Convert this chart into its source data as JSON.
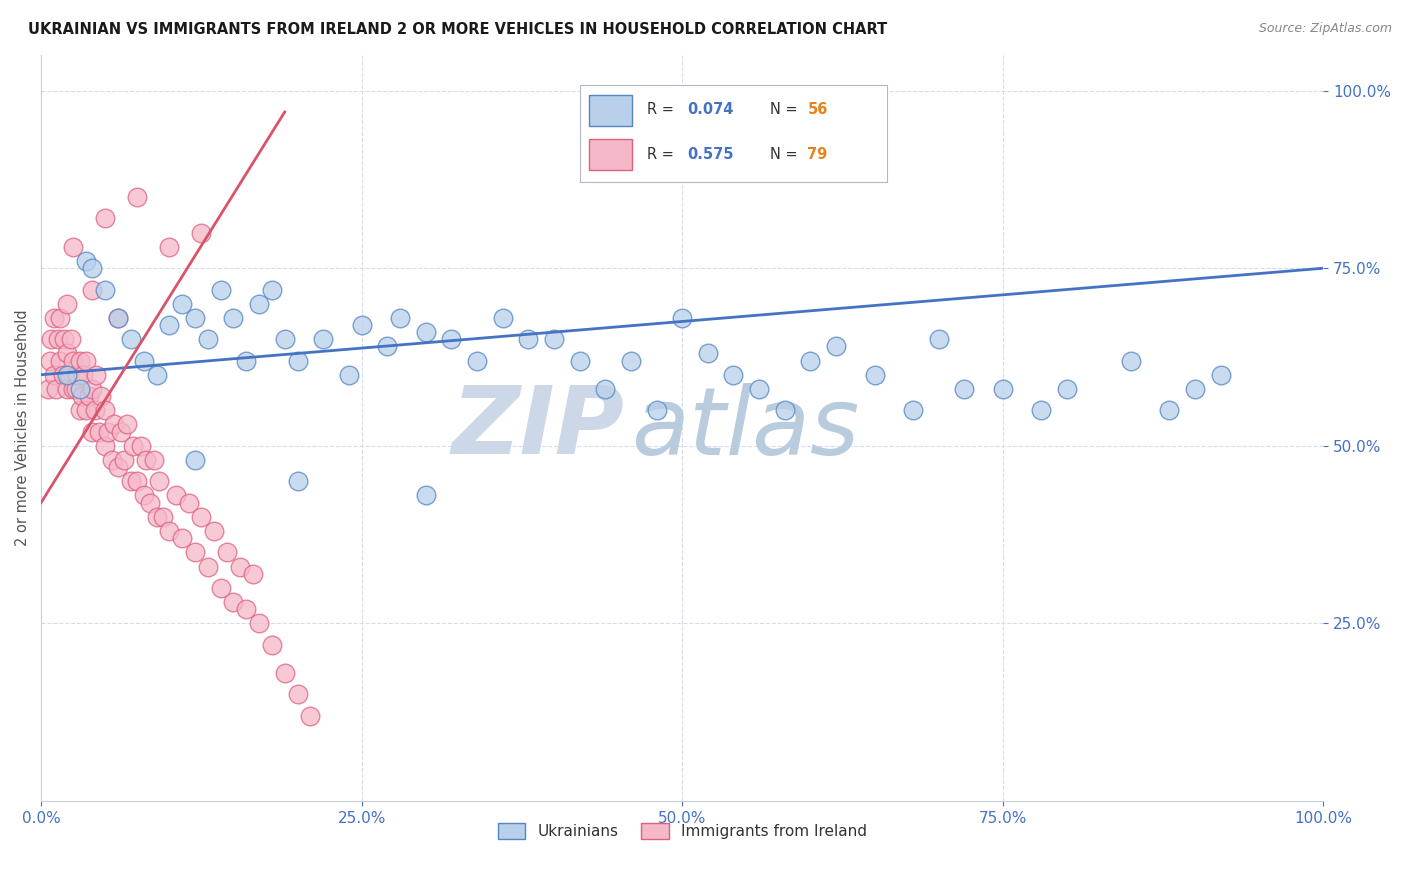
{
  "title": "UKRAINIAN VS IMMIGRANTS FROM IRELAND 2 OR MORE VEHICLES IN HOUSEHOLD CORRELATION CHART",
  "source": "Source: ZipAtlas.com",
  "ylabel": "2 or more Vehicles in Household",
  "blue_R_val": "0.074",
  "blue_N_val": "56",
  "pink_R_val": "0.575",
  "pink_N_val": "79",
  "blue_fill": "#b8d0ea",
  "pink_fill": "#f5b8c8",
  "blue_edge": "#5585c5",
  "pink_edge": "#e06080",
  "blue_trend_color": "#4472c4",
  "pink_trend_color": "#d9536a",
  "legend_R_color": "#4472c4",
  "legend_N_color": "#e8821a",
  "watermark_zip_color": "#ccd8e8",
  "watermark_atlas_color": "#b8ccde",
  "background_color": "#ffffff",
  "grid_color": "#d5dded",
  "tick_label_color": "#4472c4",
  "title_color": "#1a1a1a",
  "ylabel_color": "#555555",
  "blue_x": [
    0.02,
    0.03,
    0.035,
    0.04,
    0.05,
    0.06,
    0.07,
    0.08,
    0.09,
    0.1,
    0.11,
    0.12,
    0.13,
    0.14,
    0.15,
    0.16,
    0.17,
    0.18,
    0.19,
    0.2,
    0.22,
    0.24,
    0.25,
    0.27,
    0.28,
    0.3,
    0.32,
    0.34,
    0.36,
    0.38,
    0.4,
    0.42,
    0.44,
    0.46,
    0.48,
    0.5,
    0.52,
    0.54,
    0.56,
    0.58,
    0.6,
    0.62,
    0.65,
    0.68,
    0.7,
    0.72,
    0.75,
    0.78,
    0.8,
    0.85,
    0.88,
    0.9,
    0.92,
    0.12,
    0.2,
    0.3
  ],
  "blue_y": [
    0.6,
    0.58,
    0.76,
    0.75,
    0.72,
    0.68,
    0.65,
    0.62,
    0.6,
    0.67,
    0.7,
    0.68,
    0.65,
    0.72,
    0.68,
    0.62,
    0.7,
    0.72,
    0.65,
    0.62,
    0.65,
    0.6,
    0.67,
    0.64,
    0.68,
    0.66,
    0.65,
    0.62,
    0.68,
    0.65,
    0.65,
    0.62,
    0.58,
    0.62,
    0.55,
    0.68,
    0.63,
    0.6,
    0.58,
    0.55,
    0.62,
    0.64,
    0.6,
    0.55,
    0.65,
    0.58,
    0.58,
    0.55,
    0.58,
    0.62,
    0.55,
    0.58,
    0.6,
    0.48,
    0.45,
    0.43
  ],
  "pink_x": [
    0.005,
    0.007,
    0.008,
    0.01,
    0.01,
    0.012,
    0.013,
    0.015,
    0.015,
    0.017,
    0.018,
    0.02,
    0.02,
    0.022,
    0.023,
    0.025,
    0.025,
    0.027,
    0.028,
    0.03,
    0.03,
    0.032,
    0.033,
    0.035,
    0.035,
    0.037,
    0.04,
    0.04,
    0.042,
    0.043,
    0.045,
    0.047,
    0.05,
    0.05,
    0.052,
    0.055,
    0.057,
    0.06,
    0.062,
    0.065,
    0.067,
    0.07,
    0.072,
    0.075,
    0.078,
    0.08,
    0.082,
    0.085,
    0.088,
    0.09,
    0.092,
    0.095,
    0.1,
    0.105,
    0.11,
    0.115,
    0.12,
    0.125,
    0.13,
    0.135,
    0.14,
    0.145,
    0.15,
    0.155,
    0.16,
    0.165,
    0.17,
    0.18,
    0.19,
    0.2,
    0.21,
    0.025,
    0.05,
    0.075,
    0.1,
    0.125,
    0.02,
    0.04,
    0.06
  ],
  "pink_y": [
    0.58,
    0.62,
    0.65,
    0.6,
    0.68,
    0.58,
    0.65,
    0.62,
    0.68,
    0.6,
    0.65,
    0.58,
    0.63,
    0.6,
    0.65,
    0.58,
    0.62,
    0.58,
    0.6,
    0.55,
    0.62,
    0.57,
    0.6,
    0.55,
    0.62,
    0.57,
    0.52,
    0.58,
    0.55,
    0.6,
    0.52,
    0.57,
    0.5,
    0.55,
    0.52,
    0.48,
    0.53,
    0.47,
    0.52,
    0.48,
    0.53,
    0.45,
    0.5,
    0.45,
    0.5,
    0.43,
    0.48,
    0.42,
    0.48,
    0.4,
    0.45,
    0.4,
    0.38,
    0.43,
    0.37,
    0.42,
    0.35,
    0.4,
    0.33,
    0.38,
    0.3,
    0.35,
    0.28,
    0.33,
    0.27,
    0.32,
    0.25,
    0.22,
    0.18,
    0.15,
    0.12,
    0.78,
    0.82,
    0.85,
    0.78,
    0.8,
    0.7,
    0.72,
    0.68
  ],
  "blue_trend_x0": 0.0,
  "blue_trend_x1": 1.0,
  "blue_trend_y0": 0.6,
  "blue_trend_y1": 0.75,
  "pink_trend_x0": 0.0,
  "pink_trend_x1": 0.19,
  "pink_trend_y0": 0.42,
  "pink_trend_y1": 0.97,
  "xlim": [
    0.0,
    1.0
  ],
  "ylim": [
    0.0,
    1.05
  ],
  "xticks": [
    0.0,
    0.25,
    0.5,
    0.75,
    1.0
  ],
  "yticks": [
    0.25,
    0.5,
    0.75,
    1.0
  ]
}
